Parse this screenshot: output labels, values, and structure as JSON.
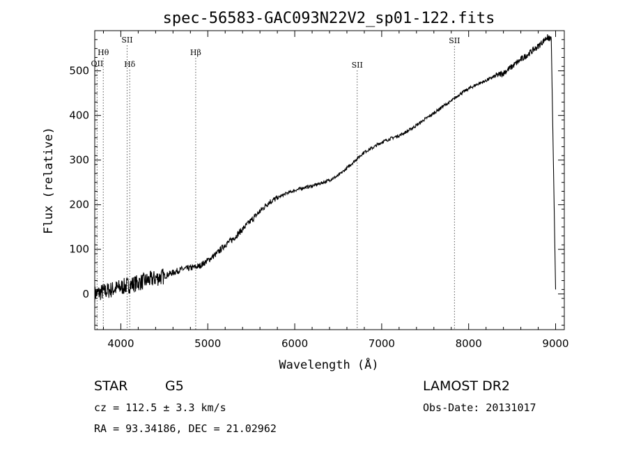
{
  "chart_data": {
    "type": "line",
    "title": "spec-56583-GAC093N22V2_sp01-122.fits",
    "xlabel": "Wavelength (Å)",
    "ylabel": "Flux (relative)",
    "xlim": [
      3700,
      9100
    ],
    "ylim": [
      -80,
      590
    ],
    "x_ticks": [
      4000,
      5000,
      6000,
      7000,
      8000,
      9000
    ],
    "y_ticks": [
      0,
      100,
      200,
      300,
      400,
      500
    ],
    "grid": false,
    "legend": "none",
    "series": [
      {
        "x": [
          3700,
          3800,
          3900,
          4000,
          4100,
          4200,
          4300,
          4400,
          4500,
          4600,
          4700,
          4800,
          4900,
          5000,
          5100,
          5200,
          5300,
          5400,
          5500,
          5600,
          5700,
          5800,
          5900,
          6000,
          6100,
          6200,
          6300,
          6400,
          6500,
          6600,
          6700,
          6800,
          6900,
          7000,
          7100,
          7200,
          7300,
          7400,
          7500,
          7600,
          7700,
          7800,
          7900,
          8000,
          8100,
          8200,
          8300,
          8400,
          8500,
          8600,
          8700,
          8800,
          8900,
          8950,
          9000
        ],
        "y": [
          0,
          5,
          10,
          15,
          20,
          25,
          30,
          35,
          40,
          48,
          55,
          58,
          62,
          75,
          90,
          110,
          125,
          145,
          165,
          185,
          205,
          215,
          225,
          232,
          238,
          242,
          248,
          255,
          265,
          282,
          300,
          318,
          328,
          340,
          348,
          355,
          365,
          378,
          392,
          405,
          420,
          432,
          448,
          460,
          470,
          478,
          488,
          495,
          510,
          525,
          540,
          555,
          575,
          570,
          10
        ]
      }
    ],
    "lines": [
      {
        "name": "Hθ",
        "x": 3798
      },
      {
        "name": "OII",
        "x": 3727
      },
      {
        "name": "SII",
        "x": 4072
      },
      {
        "name": "Hδ",
        "x": 4102
      },
      {
        "name": "Hβ",
        "x": 4861
      },
      {
        "name": "SII",
        "x": 6718
      },
      {
        "name": "SII",
        "x": 7837
      }
    ]
  },
  "info": {
    "class_type": "STAR",
    "subclass": "G5",
    "survey": "LAMOST DR2",
    "cz": "cz = 112.5 ± 3.3 km/s",
    "obs_date": "Obs-Date: 20131017",
    "coords": "RA =  93.34186, DEC =  21.02962"
  }
}
